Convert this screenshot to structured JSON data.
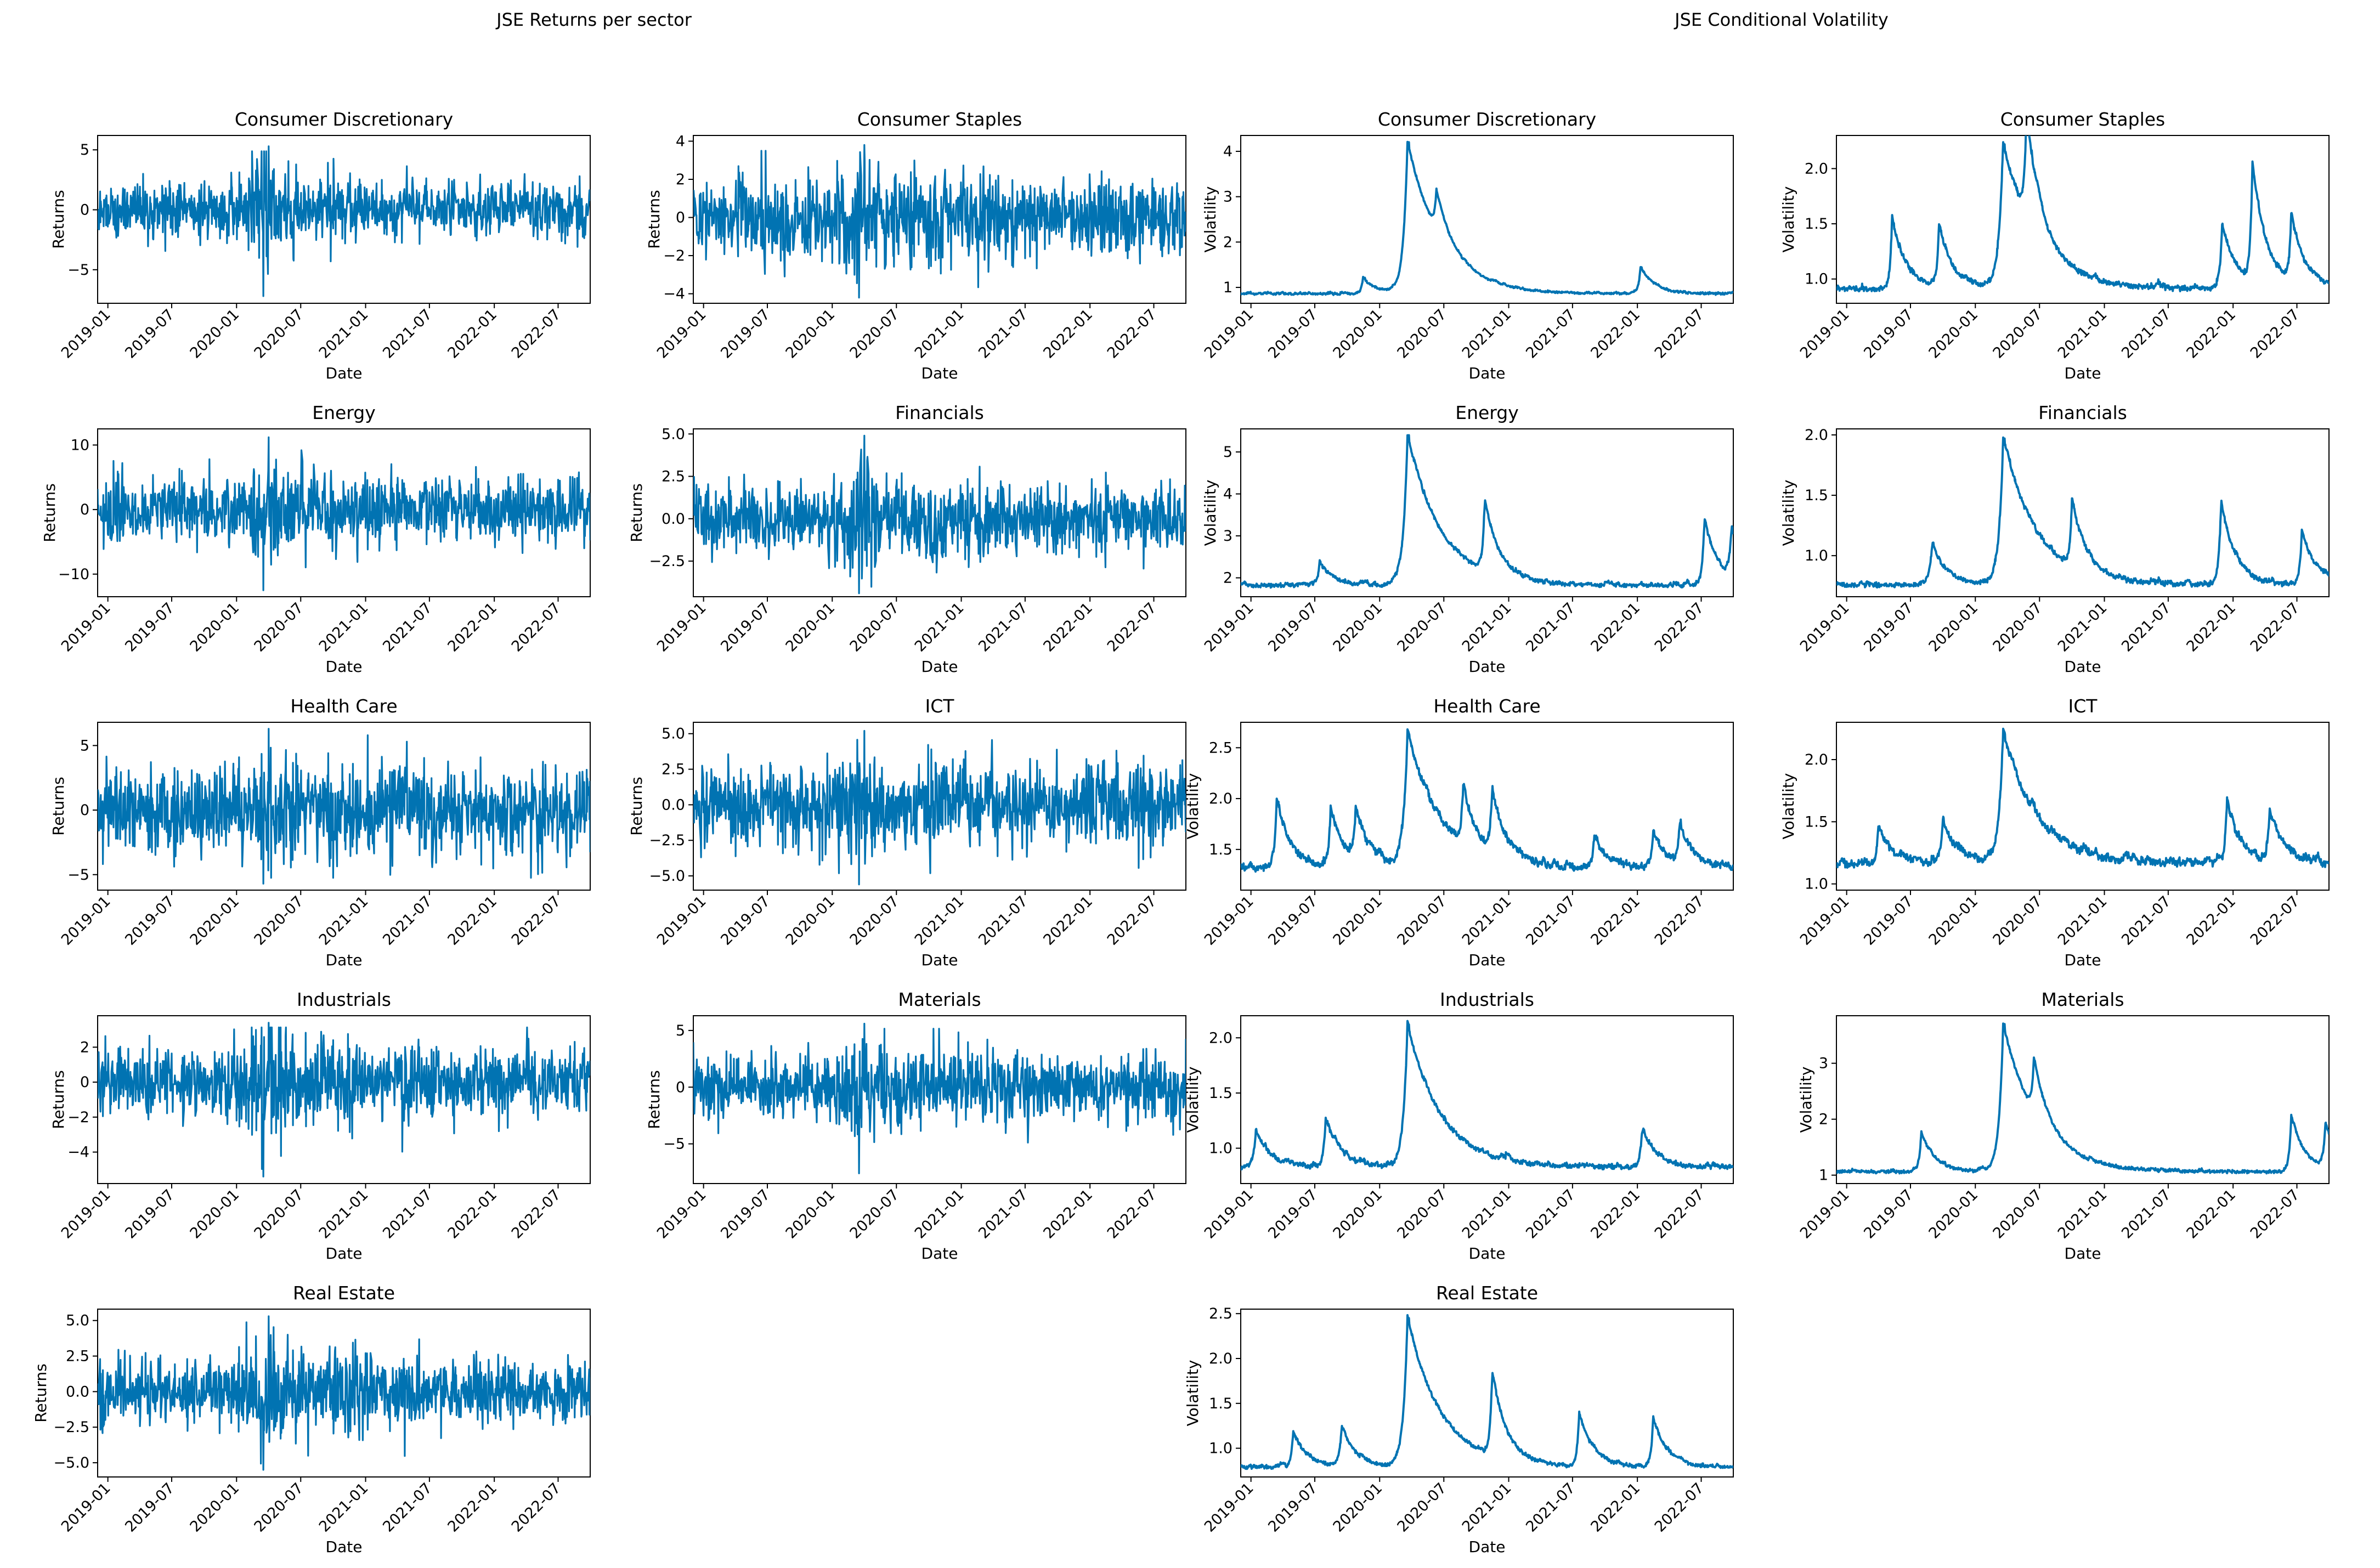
{
  "colors": {
    "line": "#0173b2",
    "axes": "#000000",
    "background": "#ffffff"
  },
  "figure_titles": {
    "left": "JSE Returns per sector",
    "right": "JSE Conditional Volatility"
  },
  "chart_data": [
    {
      "type": "line",
      "kind": "returns",
      "title": "Consumer Discretionary",
      "xlabel": "Date",
      "ylabel": "Returns",
      "ylim": [
        -7.8,
        6.2
      ],
      "yticks": [
        -5,
        0,
        5
      ],
      "ytick_labels": [
        "−5",
        "0",
        "5"
      ],
      "x_start": "2018-12-03",
      "x_end": "2022-09-30",
      "xticks": [
        "2019-01",
        "2019-07",
        "2020-01",
        "2020-07",
        "2021-01",
        "2021-07",
        "2022-01",
        "2022-07"
      ],
      "series": [
        {
          "name": "Consumer Discretionary",
          "base": 1.1,
          "crisis": 2.4,
          "min": -7.2,
          "max": 5.3,
          "seed": 11
        }
      ]
    },
    {
      "type": "line",
      "kind": "returns",
      "title": "Consumer Staples",
      "xlabel": "Date",
      "ylabel": "Returns",
      "ylim": [
        -4.5,
        4.3
      ],
      "yticks": [
        -4,
        -2,
        0,
        2,
        4
      ],
      "ytick_labels": [
        "−4",
        "−2",
        "0",
        "2",
        "4"
      ],
      "x_start": "2018-12-03",
      "x_end": "2022-09-30",
      "xticks": [
        "2019-01",
        "2019-07",
        "2020-01",
        "2020-07",
        "2021-01",
        "2021-07",
        "2022-01",
        "2022-07"
      ],
      "series": [
        {
          "name": "Consumer Staples",
          "base": 1.05,
          "crisis": 1.4,
          "min": -4.2,
          "max": 3.8,
          "seed": 23
        }
      ]
    },
    {
      "type": "line",
      "kind": "volatility",
      "title": "Consumer Discretionary",
      "xlabel": "Date",
      "ylabel": "Volatility",
      "ylim": [
        0.65,
        4.35
      ],
      "yticks": [
        1,
        2,
        3,
        4
      ],
      "ytick_labels": [
        "1",
        "2",
        "3",
        "4"
      ],
      "x_start": "2018-12-03",
      "x_end": "2022-09-30",
      "xticks": [
        "2019-01",
        "2019-07",
        "2020-01",
        "2020-07",
        "2021-01",
        "2021-07",
        "2022-01",
        "2022-07"
      ],
      "series": [
        {
          "name": "Consumer Discretionary",
          "floor": 0.85,
          "peak": 4.2,
          "seed": 31,
          "bumps": [
            [
              "2019-11-15",
              0.35
            ],
            [
              "2020-06-10",
              0.9
            ],
            [
              "2022-01-10",
              0.6
            ]
          ]
        }
      ]
    },
    {
      "type": "line",
      "kind": "volatility",
      "title": "Consumer Staples",
      "xlabel": "Date",
      "ylabel": "Volatility",
      "ylim": [
        0.78,
        2.3
      ],
      "yticks": [
        1.0,
        1.5,
        2.0
      ],
      "ytick_labels": [
        "1.0",
        "1.5",
        "2.0"
      ],
      "x_start": "2018-12-03",
      "x_end": "2022-09-30",
      "xticks": [
        "2019-01",
        "2019-07",
        "2020-01",
        "2020-07",
        "2021-01",
        "2021-07",
        "2022-01",
        "2022-07"
      ],
      "series": [
        {
          "name": "Consumer Staples",
          "floor": 0.9,
          "peak": 2.22,
          "seed": 37,
          "bumps": [
            [
              "2019-05-10",
              0.65
            ],
            [
              "2019-09-20",
              0.55
            ],
            [
              "2020-05-25",
              0.95
            ],
            [
              "2021-12-01",
              0.6
            ],
            [
              "2022-02-25",
              1.1
            ],
            [
              "2022-06-15",
              0.6
            ]
          ]
        }
      ]
    },
    {
      "type": "line",
      "kind": "returns",
      "title": "Energy",
      "xlabel": "Date",
      "ylabel": "Returns",
      "ylim": [
        -13.5,
        12.5
      ],
      "yticks": [
        -10,
        0,
        10
      ],
      "ytick_labels": [
        "−10",
        "0",
        "10"
      ],
      "x_start": "2018-12-03",
      "x_end": "2022-09-30",
      "xticks": [
        "2019-01",
        "2019-07",
        "2020-01",
        "2020-07",
        "2021-01",
        "2021-07",
        "2022-01",
        "2022-07"
      ],
      "series": [
        {
          "name": "Energy",
          "base": 2.4,
          "crisis": 1.6,
          "min": -12.5,
          "max": 11.2,
          "seed": 41
        }
      ]
    },
    {
      "type": "line",
      "kind": "returns",
      "title": "Financials",
      "xlabel": "Date",
      "ylabel": "Returns",
      "ylim": [
        -4.6,
        5.3
      ],
      "yticks": [
        -2.5,
        0.0,
        2.5,
        5.0
      ],
      "ytick_labels": [
        "−2.5",
        "0.0",
        "2.5",
        "5.0"
      ],
      "x_start": "2018-12-03",
      "x_end": "2022-09-30",
      "xticks": [
        "2019-01",
        "2019-07",
        "2020-01",
        "2020-07",
        "2021-01",
        "2021-07",
        "2022-01",
        "2022-07"
      ],
      "series": [
        {
          "name": "Financials",
          "base": 1.0,
          "crisis": 1.8,
          "min": -4.4,
          "max": 4.9,
          "seed": 53
        }
      ]
    },
    {
      "type": "line",
      "kind": "volatility",
      "title": "Energy",
      "xlabel": "Date",
      "ylabel": "Volatility",
      "ylim": [
        1.55,
        5.55
      ],
      "yticks": [
        2,
        3,
        4,
        5
      ],
      "ytick_labels": [
        "2",
        "3",
        "4",
        "5"
      ],
      "x_start": "2018-12-03",
      "x_end": "2022-09-30",
      "xticks": [
        "2019-01",
        "2019-07",
        "2020-01",
        "2020-07",
        "2021-01",
        "2021-07",
        "2022-01",
        "2022-07"
      ],
      "series": [
        {
          "name": "Energy",
          "floor": 1.8,
          "peak": 5.4,
          "seed": 59,
          "bumps": [
            [
              "2019-07-15",
              0.55
            ],
            [
              "2020-10-25",
              1.7
            ],
            [
              "2022-07-10",
              1.6
            ],
            [
              "2022-09-25",
              1.2
            ]
          ]
        }
      ]
    },
    {
      "type": "line",
      "kind": "volatility",
      "title": "Financials",
      "xlabel": "Date",
      "ylabel": "Volatility",
      "ylim": [
        0.66,
        2.05
      ],
      "yticks": [
        1.0,
        1.5,
        2.0
      ],
      "ytick_labels": [
        "1.0",
        "1.5",
        "2.0"
      ],
      "x_start": "2018-12-03",
      "x_end": "2022-09-30",
      "xticks": [
        "2019-01",
        "2019-07",
        "2020-01",
        "2020-07",
        "2021-01",
        "2021-07",
        "2022-01",
        "2022-07"
      ],
      "series": [
        {
          "name": "Financials",
          "floor": 0.75,
          "peak": 1.97,
          "seed": 61,
          "bumps": [
            [
              "2019-09-01",
              0.35
            ],
            [
              "2020-10-01",
              0.55
            ],
            [
              "2021-11-28",
              0.7
            ],
            [
              "2022-07-15",
              0.45
            ]
          ]
        }
      ]
    },
    {
      "type": "line",
      "kind": "returns",
      "title": "Health Care",
      "xlabel": "Date",
      "ylabel": "Returns",
      "ylim": [
        -6.2,
        6.8
      ],
      "yticks": [
        -5,
        0,
        5
      ],
      "ytick_labels": [
        "−5",
        "0",
        "5"
      ],
      "x_start": "2018-12-03",
      "x_end": "2022-09-30",
      "xticks": [
        "2019-01",
        "2019-07",
        "2020-01",
        "2020-07",
        "2021-01",
        "2021-07",
        "2022-01",
        "2022-07"
      ],
      "series": [
        {
          "name": "Health Care",
          "base": 1.7,
          "crisis": 1.3,
          "min": -5.7,
          "max": 6.3,
          "seed": 71
        }
      ]
    },
    {
      "type": "line",
      "kind": "returns",
      "title": "ICT",
      "xlabel": "Date",
      "ylabel": "Returns",
      "ylim": [
        -6.0,
        5.8
      ],
      "yticks": [
        -5.0,
        -2.5,
        0.0,
        2.5,
        5.0
      ],
      "ytick_labels": [
        "−5.0",
        "−2.5",
        "0.0",
        "2.5",
        "5.0"
      ],
      "x_start": "2018-12-03",
      "x_end": "2022-09-30",
      "xticks": [
        "2019-01",
        "2019-07",
        "2020-01",
        "2020-07",
        "2021-01",
        "2021-07",
        "2022-01",
        "2022-07"
      ],
      "series": [
        {
          "name": "ICT",
          "base": 1.4,
          "crisis": 1.5,
          "min": -5.6,
          "max": 5.2,
          "seed": 79
        }
      ]
    },
    {
      "type": "line",
      "kind": "volatility",
      "title": "Health Care",
      "xlabel": "Date",
      "ylabel": "Volatility",
      "ylim": [
        1.1,
        2.75
      ],
      "yticks": [
        1.5,
        2.0,
        2.5
      ],
      "ytick_labels": [
        "1.5",
        "2.0",
        "2.5"
      ],
      "x_start": "2018-12-03",
      "x_end": "2022-09-30",
      "xticks": [
        "2019-01",
        "2019-07",
        "2020-01",
        "2020-07",
        "2021-01",
        "2021-07",
        "2022-01",
        "2022-07"
      ],
      "series": [
        {
          "name": "Health Care",
          "floor": 1.3,
          "peak": 2.64,
          "seed": 83,
          "bumps": [
            [
              "2019-03-15",
              0.7
            ],
            [
              "2019-08-15",
              0.6
            ],
            [
              "2019-10-25",
              0.5
            ],
            [
              "2020-08-25",
              0.55
            ],
            [
              "2020-11-15",
              0.6
            ],
            [
              "2021-09-01",
              0.3
            ],
            [
              "2022-02-15",
              0.35
            ],
            [
              "2022-05-01",
              0.4
            ]
          ]
        }
      ]
    },
    {
      "type": "line",
      "kind": "volatility",
      "title": "ICT",
      "xlabel": "Date",
      "ylabel": "Volatility",
      "ylim": [
        0.95,
        2.3
      ],
      "yticks": [
        1.0,
        1.5,
        2.0
      ],
      "ytick_labels": [
        "1.0",
        "1.5",
        "2.0"
      ],
      "x_start": "2018-12-03",
      "x_end": "2022-09-30",
      "xticks": [
        "2019-01",
        "2019-07",
        "2020-01",
        "2020-07",
        "2021-01",
        "2021-07",
        "2022-01",
        "2022-07"
      ],
      "series": [
        {
          "name": "ICT",
          "floor": 1.15,
          "peak": 2.22,
          "seed": 89,
          "bumps": [
            [
              "2019-04-01",
              0.3
            ],
            [
              "2019-10-01",
              0.35
            ],
            [
              "2021-12-15",
              0.5
            ],
            [
              "2022-04-15",
              0.4
            ]
          ]
        }
      ]
    },
    {
      "type": "line",
      "kind": "returns",
      "title": "Industrials",
      "xlabel": "Date",
      "ylabel": "Returns",
      "ylim": [
        -5.8,
        3.8
      ],
      "yticks": [
        -4,
        -2,
        0,
        2
      ],
      "ytick_labels": [
        "−4",
        "−2",
        "0",
        "2"
      ],
      "x_start": "2018-12-03",
      "x_end": "2022-09-30",
      "xticks": [
        "2019-01",
        "2019-07",
        "2020-01",
        "2020-07",
        "2021-01",
        "2021-07",
        "2022-01",
        "2022-07"
      ],
      "series": [
        {
          "name": "Industrials",
          "base": 0.95,
          "crisis": 2.2,
          "min": -5.4,
          "max": 3.4,
          "seed": 97
        }
      ]
    },
    {
      "type": "line",
      "kind": "returns",
      "title": "Materials",
      "xlabel": "Date",
      "ylabel": "Returns",
      "ylim": [
        -8.5,
        6.3
      ],
      "yticks": [
        -5,
        0,
        5
      ],
      "ytick_labels": [
        "−5",
        "0",
        "5"
      ],
      "x_start": "2018-12-03",
      "x_end": "2022-09-30",
      "xticks": [
        "2019-01",
        "2019-07",
        "2020-01",
        "2020-07",
        "2021-01",
        "2021-07",
        "2022-01",
        "2022-07"
      ],
      "series": [
        {
          "name": "Materials",
          "base": 1.5,
          "crisis": 1.9,
          "min": -7.6,
          "max": 5.6,
          "seed": 101
        }
      ]
    },
    {
      "type": "line",
      "kind": "volatility",
      "title": "Industrials",
      "xlabel": "Date",
      "ylabel": "Volatility",
      "ylim": [
        0.68,
        2.2
      ],
      "yticks": [
        1.0,
        1.5,
        2.0
      ],
      "ytick_labels": [
        "1.0",
        "1.5",
        "2.0"
      ],
      "x_start": "2018-12-03",
      "x_end": "2022-09-30",
      "xticks": [
        "2019-01",
        "2019-07",
        "2020-01",
        "2020-07",
        "2021-01",
        "2021-07",
        "2022-01",
        "2022-07"
      ],
      "series": [
        {
          "name": "Industrials",
          "floor": 0.82,
          "peak": 2.12,
          "seed": 103,
          "bumps": [
            [
              "2019-01-15",
              0.35
            ],
            [
              "2019-08-01",
              0.45
            ],
            [
              "2022-01-15",
              0.35
            ]
          ]
        }
      ]
    },
    {
      "type": "line",
      "kind": "volatility",
      "title": "Materials",
      "xlabel": "Date",
      "ylabel": "Volatility",
      "ylim": [
        0.85,
        3.85
      ],
      "yticks": [
        1,
        2,
        3
      ],
      "ytick_labels": [
        "1",
        "2",
        "3"
      ],
      "x_start": "2018-12-03",
      "x_end": "2022-09-30",
      "xticks": [
        "2019-01",
        "2019-07",
        "2020-01",
        "2020-07",
        "2021-01",
        "2021-07",
        "2022-01",
        "2022-07"
      ],
      "series": [
        {
          "name": "Materials",
          "floor": 1.05,
          "peak": 3.7,
          "seed": 107,
          "bumps": [
            [
              "2019-08-01",
              0.7
            ],
            [
              "2020-06-15",
              1.0
            ],
            [
              "2022-06-15",
              1.0
            ],
            [
              "2022-09-20",
              0.8
            ]
          ]
        }
      ]
    },
    {
      "type": "line",
      "kind": "returns",
      "title": "Real Estate",
      "xlabel": "Date",
      "ylabel": "Returns",
      "ylim": [
        -6.0,
        5.8
      ],
      "yticks": [
        -5.0,
        -2.5,
        0.0,
        2.5,
        5.0
      ],
      "ytick_labels": [
        "−5.0",
        "−2.5",
        "0.0",
        "2.5",
        "5.0"
      ],
      "x_start": "2018-12-03",
      "x_end": "2022-09-30",
      "xticks": [
        "2019-01",
        "2019-07",
        "2020-01",
        "2020-07",
        "2021-01",
        "2021-07",
        "2022-01",
        "2022-07"
      ],
      "series": [
        {
          "name": "Real Estate",
          "base": 1.15,
          "crisis": 2.0,
          "min": -5.5,
          "max": 5.3,
          "seed": 113
        }
      ]
    },
    {
      "type": "line",
      "kind": "volatility",
      "title": "Real Estate",
      "xlabel": "Date",
      "ylabel": "Volatility",
      "ylim": [
        0.68,
        2.55
      ],
      "yticks": [
        1.0,
        1.5,
        2.0,
        2.5
      ],
      "ytick_labels": [
        "1.0",
        "1.5",
        "2.0",
        "2.5"
      ],
      "x_start": "2018-12-03",
      "x_end": "2022-09-30",
      "xticks": [
        "2019-01",
        "2019-07",
        "2020-01",
        "2020-07",
        "2021-01",
        "2021-07",
        "2022-01",
        "2022-07"
      ],
      "series": [
        {
          "name": "Real Estate",
          "floor": 0.78,
          "peak": 2.45,
          "seed": 127,
          "bumps": [
            [
              "2019-05-01",
              0.4
            ],
            [
              "2019-09-15",
              0.45
            ],
            [
              "2020-11-15",
              0.95
            ],
            [
              "2021-07-20",
              0.6
            ],
            [
              "2022-02-15",
              0.55
            ]
          ]
        }
      ]
    }
  ]
}
